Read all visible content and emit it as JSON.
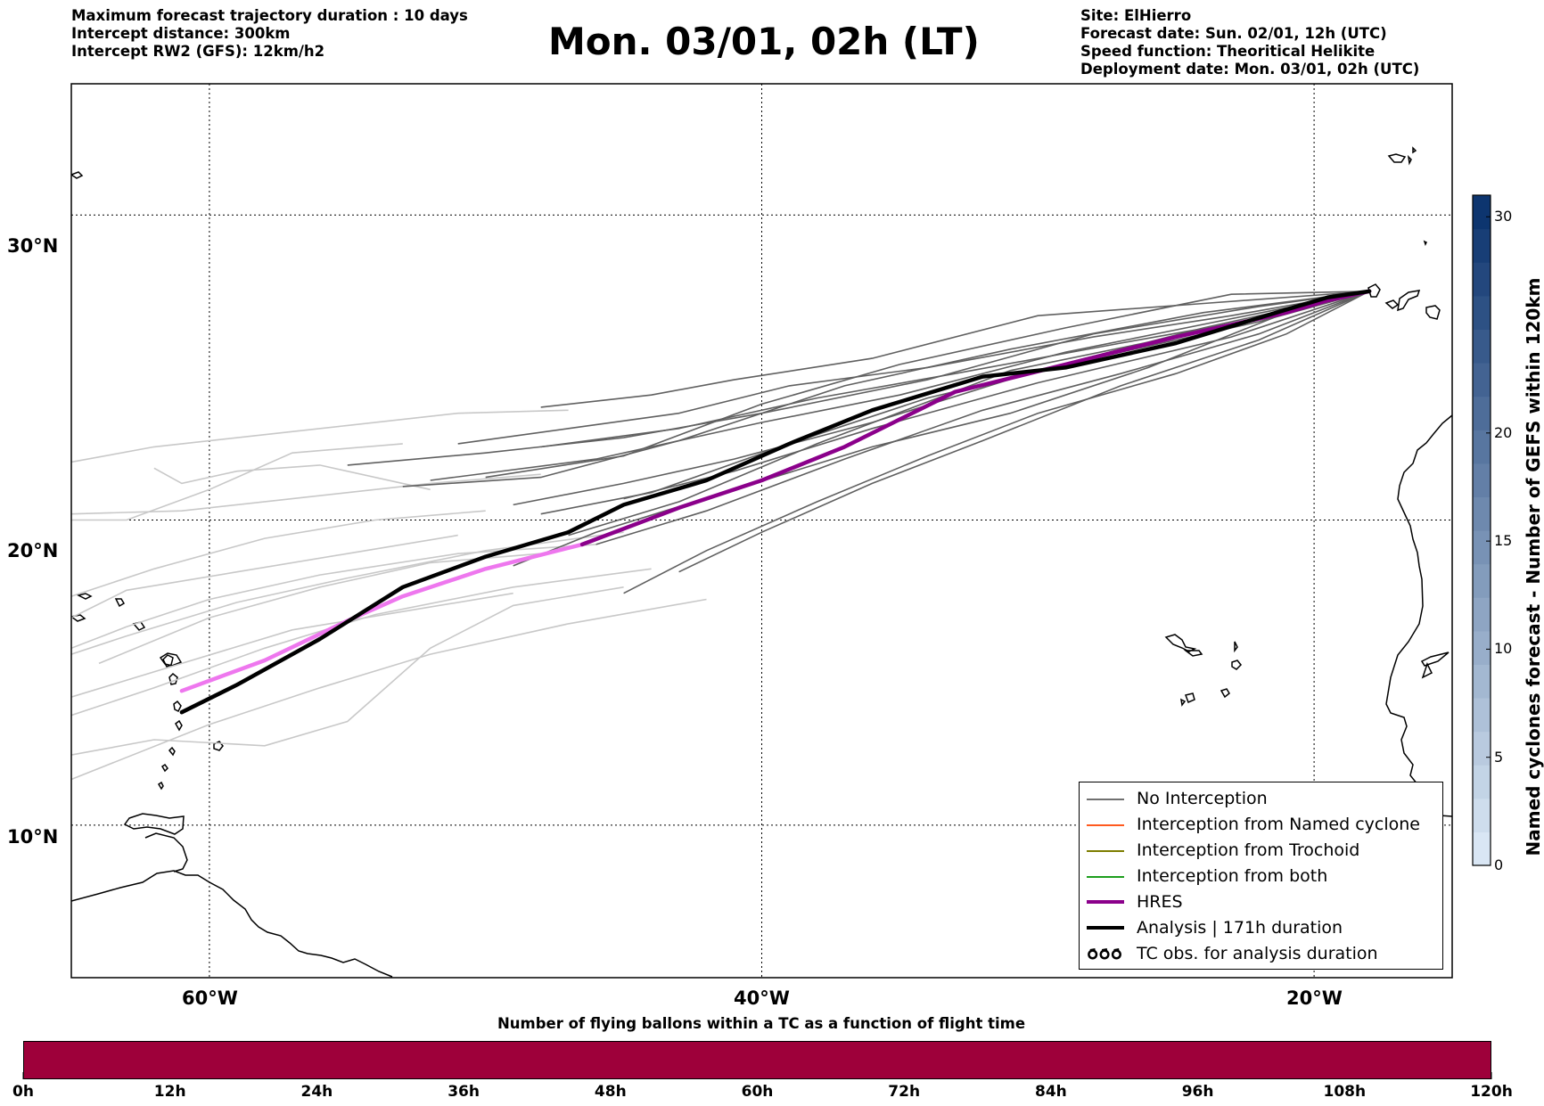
{
  "header": {
    "left": [
      "Maximum forecast trajectory duration : 10 days",
      "Intercept distance: 300km",
      "Intercept RW2 (GFS):  12km/h2"
    ],
    "title": "Mon. 03/01, 02h (LT)",
    "right": [
      "Site: ElHierro",
      "Forecast date: Sun. 02/01, 12h (UTC)",
      "Speed function: Theoritical Helikite",
      "Deployment date: Mon. 03/01, 02h (UTC)"
    ]
  },
  "map": {
    "lat_labels": [
      "30°N",
      "20°N",
      "10°N"
    ],
    "lon_labels": [
      "60°W",
      "40°W",
      "20°W"
    ],
    "lon_range": [
      -65,
      -15
    ],
    "lat_range": [
      5,
      34.3
    ],
    "colors": {
      "no_interception_dark": "#606060",
      "no_interception_light": "#c8c8c8",
      "hres": "#8b008b",
      "hres_light": "#ee77ee",
      "analysis": "#000000"
    },
    "analysis_track": [
      [
        -61,
        13.7
      ],
      [
        -59,
        14.6
      ],
      [
        -56,
        16.1
      ],
      [
        -53,
        17.8
      ],
      [
        -50,
        18.8
      ],
      [
        -47,
        19.6
      ],
      [
        -45,
        20.5
      ],
      [
        -42,
        21.3
      ],
      [
        -39,
        22.5
      ],
      [
        -36,
        23.6
      ],
      [
        -32,
        24.7
      ],
      [
        -29,
        25.0
      ],
      [
        -25,
        25.8
      ],
      [
        -21,
        26.9
      ],
      [
        -19.5,
        27.3
      ],
      [
        -18,
        27.5
      ]
    ],
    "hres_track": [
      [
        -61,
        14.4
      ],
      [
        -58,
        15.4
      ],
      [
        -55,
        16.7
      ],
      [
        -53,
        17.5
      ],
      [
        -50,
        18.4
      ],
      [
        -46.5,
        19.2
      ],
      [
        -43,
        20.4
      ],
      [
        -40,
        21.3
      ],
      [
        -37,
        22.4
      ],
      [
        -33,
        24.2
      ],
      [
        -29,
        25.1
      ],
      [
        -25,
        26.0
      ],
      [
        -21,
        26.8
      ],
      [
        -19.5,
        27.2
      ],
      [
        -18,
        27.5
      ]
    ],
    "ensemble_dark": [
      [
        [
          -18,
          27.5
        ],
        [
          -24,
          27.1
        ],
        [
          -30,
          26.7
        ],
        [
          -36,
          25.3
        ],
        [
          -41,
          24.6
        ],
        [
          -44,
          24.1
        ],
        [
          -48,
          23.7
        ]
      ],
      [
        [
          -18,
          27.5
        ],
        [
          -23,
          26.7
        ],
        [
          -28,
          26.0
        ],
        [
          -34,
          25.0
        ],
        [
          -39,
          24.4
        ],
        [
          -43,
          23.5
        ],
        [
          -47,
          23.0
        ],
        [
          -51,
          22.5
        ]
      ],
      [
        [
          -18,
          27.5
        ],
        [
          -23,
          26.6
        ],
        [
          -29,
          25.5
        ],
        [
          -35,
          24.1
        ],
        [
          -40,
          23.2
        ],
        [
          -46,
          22.0
        ],
        [
          -52,
          21.3
        ]
      ],
      [
        [
          -18,
          27.5
        ],
        [
          -24,
          26.3
        ],
        [
          -30,
          24.9
        ],
        [
          -36,
          23.2
        ],
        [
          -41,
          22.0
        ],
        [
          -45,
          21.2
        ],
        [
          -49,
          20.5
        ]
      ],
      [
        [
          -18,
          27.5
        ],
        [
          -23,
          26.0
        ],
        [
          -30,
          24.5
        ],
        [
          -36,
          23.0
        ],
        [
          -41,
          21.6
        ],
        [
          -45,
          20.7
        ]
      ],
      [
        [
          -18,
          27.5
        ],
        [
          -22,
          26.1
        ],
        [
          -27,
          24.8
        ],
        [
          -32,
          23.6
        ],
        [
          -37,
          22.0
        ],
        [
          -42,
          20.3
        ],
        [
          -46,
          19.2
        ]
      ],
      [
        [
          -18,
          27.5
        ],
        [
          -22,
          25.9
        ],
        [
          -27,
          24.4
        ],
        [
          -32,
          22.6
        ],
        [
          -36,
          21.2
        ],
        [
          -40,
          19.6
        ],
        [
          -43,
          18.3
        ]
      ],
      [
        [
          -18,
          27.5
        ],
        [
          -21,
          26.1
        ],
        [
          -25,
          24.8
        ],
        [
          -30,
          23.5
        ],
        [
          -34,
          22.1
        ],
        [
          -38,
          20.6
        ],
        [
          -42,
          19.0
        ],
        [
          -45,
          17.6
        ]
      ],
      [
        [
          -18,
          27.5
        ],
        [
          -22,
          26.5
        ],
        [
          -28,
          25.3
        ],
        [
          -34,
          24.0
        ],
        [
          -39,
          22.5
        ],
        [
          -44,
          20.9
        ],
        [
          -48,
          20.2
        ]
      ],
      [
        [
          -18,
          27.5
        ],
        [
          -24,
          26.8
        ],
        [
          -31,
          25.6
        ],
        [
          -37,
          24.4
        ],
        [
          -43,
          22.6
        ],
        [
          -48,
          21.4
        ],
        [
          -53,
          21.1
        ]
      ],
      [
        [
          -18,
          27.5
        ],
        [
          -24,
          26.2
        ],
        [
          -31,
          24.9
        ],
        [
          -38,
          22.5
        ],
        [
          -43,
          20.6
        ],
        [
          -47,
          19.5
        ]
      ],
      [
        [
          -18,
          27.5
        ],
        [
          -23,
          27.4
        ],
        [
          -29,
          26.3
        ],
        [
          -35,
          25.1
        ],
        [
          -40,
          23.8
        ],
        [
          -45,
          22.1
        ],
        [
          -50,
          21.4
        ]
      ],
      [
        [
          -18,
          27.5
        ],
        [
          -22,
          27.0
        ],
        [
          -28,
          26.1
        ],
        [
          -34,
          24.6
        ],
        [
          -40,
          23.5
        ],
        [
          -45,
          22.7
        ],
        [
          -50,
          22.2
        ],
        [
          -55,
          21.8
        ]
      ],
      [
        [
          -18,
          27.5
        ],
        [
          -22,
          26.6
        ],
        [
          -27,
          25.8
        ],
        [
          -33,
          24.8
        ],
        [
          -38,
          24.0
        ],
        [
          -43,
          23.0
        ],
        [
          -48,
          22.4
        ]
      ],
      [
        [
          -18,
          27.5
        ],
        [
          -21,
          26.8
        ],
        [
          -26,
          25.0
        ],
        [
          -31,
          23.5
        ],
        [
          -36,
          22.4
        ],
        [
          -41,
          21.0
        ],
        [
          -46,
          19.6
        ],
        [
          -49,
          18.5
        ]
      ]
    ],
    "ensemble_light": [
      [
        [
          -47,
          23.6
        ],
        [
          -51,
          23.5
        ],
        [
          -55,
          23.1
        ],
        [
          -58,
          22.8
        ],
        [
          -62,
          22.4
        ],
        [
          -65,
          21.9
        ]
      ],
      [
        [
          -48,
          21.5
        ],
        [
          -52,
          21.2
        ],
        [
          -57,
          20.7
        ],
        [
          -61,
          20.3
        ],
        [
          -65,
          20.2
        ]
      ],
      [
        [
          -45,
          19.6
        ],
        [
          -50,
          19.0
        ],
        [
          -55,
          18.1
        ],
        [
          -59,
          17.3
        ],
        [
          -63,
          16.2
        ],
        [
          -65,
          15.6
        ]
      ],
      [
        [
          -44,
          18.4
        ],
        [
          -49,
          17.8
        ],
        [
          -54,
          16.9
        ],
        [
          -58,
          15.8
        ],
        [
          -62,
          14.5
        ],
        [
          -65,
          13.6
        ]
      ],
      [
        [
          -42,
          17.4
        ],
        [
          -47,
          16.6
        ],
        [
          -52,
          15.6
        ],
        [
          -56,
          14.5
        ],
        [
          -60,
          13.3
        ],
        [
          -65,
          11.5
        ]
      ],
      [
        [
          -46,
          19.2
        ],
        [
          -51,
          18.9
        ],
        [
          -56,
          18.2
        ],
        [
          -60,
          17.4
        ],
        [
          -63,
          16.5
        ],
        [
          -65,
          15.8
        ]
      ],
      [
        [
          -50,
          20.3
        ],
        [
          -54,
          20.0
        ],
        [
          -58,
          19.4
        ],
        [
          -62,
          18.4
        ],
        [
          -65,
          17.5
        ]
      ],
      [
        [
          -52,
          21.0
        ],
        [
          -56,
          21.8
        ],
        [
          -59,
          21.6
        ],
        [
          -61,
          21.2
        ],
        [
          -62,
          21.7
        ]
      ],
      [
        [
          -45,
          17.8
        ],
        [
          -49,
          17.2
        ],
        [
          -52,
          15.8
        ],
        [
          -55,
          13.4
        ],
        [
          -58,
          12.6
        ],
        [
          -62,
          12.8
        ],
        [
          -65,
          12.3
        ]
      ],
      [
        [
          -53,
          22.5
        ],
        [
          -57,
          22.2
        ],
        [
          -60,
          21.0
        ],
        [
          -63,
          20.0
        ],
        [
          -65,
          20.0
        ]
      ],
      [
        [
          -48,
          18.9
        ],
        [
          -52,
          18.6
        ],
        [
          -56,
          17.8
        ],
        [
          -60,
          16.8
        ],
        [
          -64,
          15.3
        ]
      ],
      [
        [
          -51,
          19.5
        ],
        [
          -55,
          18.9
        ],
        [
          -59,
          18.3
        ],
        [
          -63,
          17.7
        ],
        [
          -65,
          16.8
        ]
      ],
      [
        [
          -49,
          17.6
        ],
        [
          -53,
          17.0
        ],
        [
          -57,
          16.4
        ],
        [
          -61,
          15.3
        ],
        [
          -65,
          14.2
        ]
      ]
    ],
    "colorbar": {
      "title": "Named cyclones forecast - Number of GEFS within 120km",
      "ticks": [
        "0",
        "5",
        "10",
        "15",
        "20",
        "30"
      ],
      "tick_values": [
        0,
        5,
        10,
        15,
        20,
        30
      ],
      "max": 31
    },
    "legend": [
      {
        "label": "No Interception",
        "color": "#707070",
        "style": "thin"
      },
      {
        "label": "Interception from Named cyclone",
        "color": "#ff5a1f",
        "style": "thin"
      },
      {
        "label": "Interception from Trochoid",
        "color": "#7d7d00",
        "style": "thin"
      },
      {
        "label": "Interception from both",
        "color": "#1e9e1e",
        "style": "thin"
      },
      {
        "label": "HRES",
        "color": "#8b008b",
        "style": "thick"
      },
      {
        "label": "Analysis | 171h duration",
        "color": "#000000",
        "style": "thick"
      },
      {
        "label": "TC obs. for analysis duration",
        "color": "#000000",
        "style": "symbol"
      }
    ]
  },
  "bottom": {
    "title": "Number of flying ballons within a TC as a function of flight time",
    "bar_color": "#9e003a",
    "ticks": [
      "0h",
      "12h",
      "24h",
      "36h",
      "48h",
      "60h",
      "72h",
      "84h",
      "96h",
      "108h",
      "120h"
    ]
  }
}
